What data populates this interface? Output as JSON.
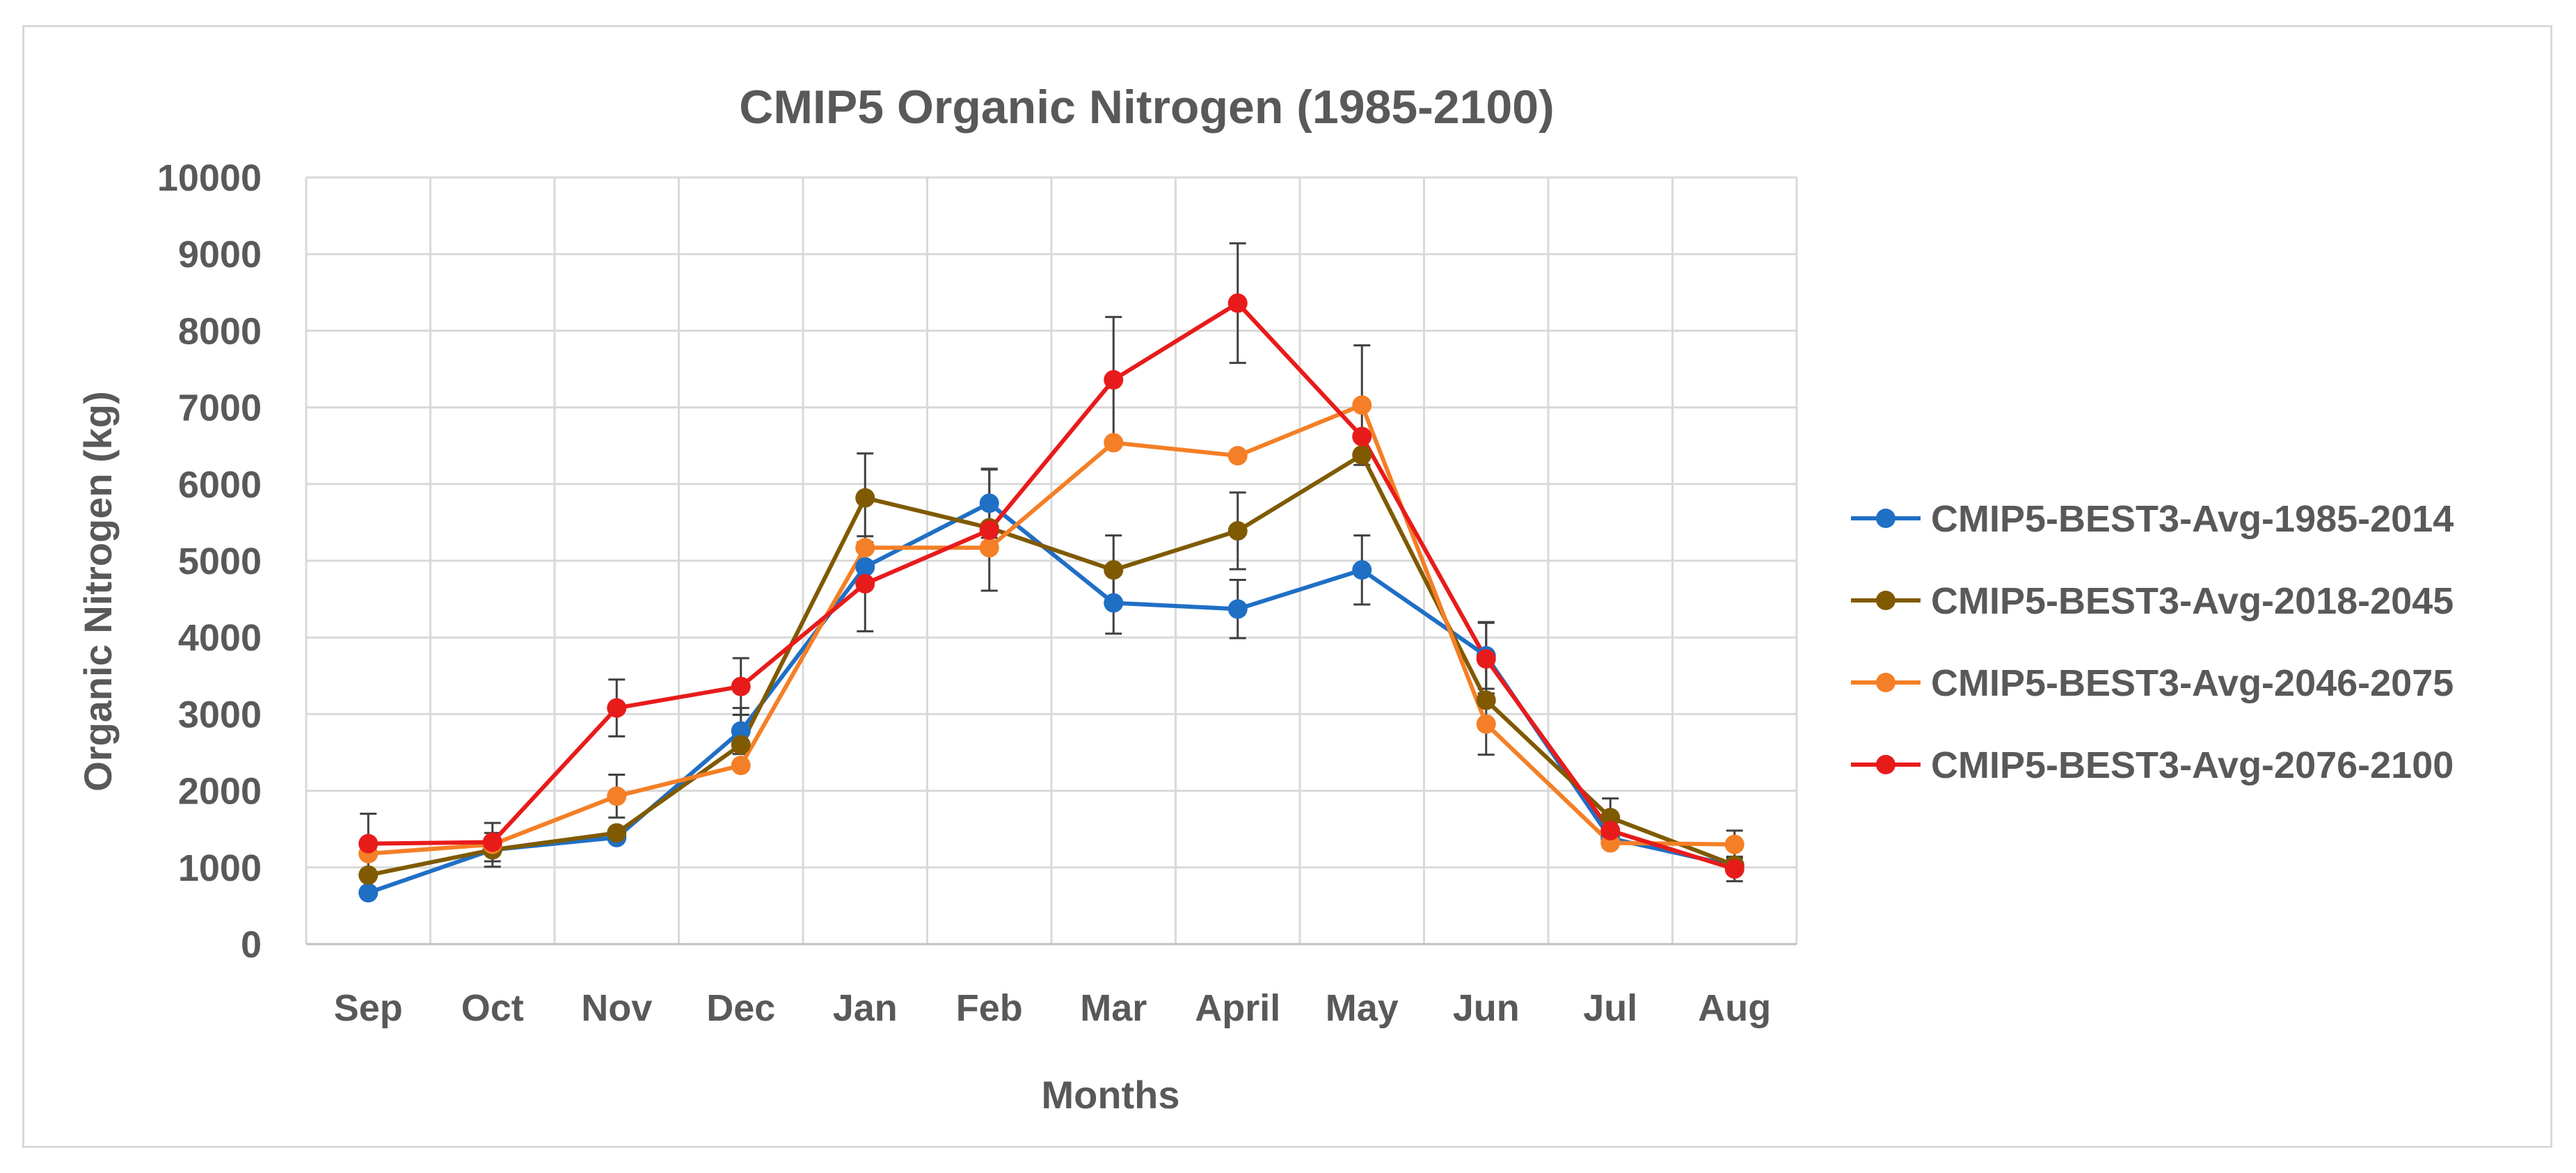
{
  "chart_data": {
    "type": "line",
    "title": "CMIP5 Organic Nitrogen (1985-2100)",
    "xlabel": "Months",
    "ylabel": "Organic Nitrogen (kg)",
    "categories": [
      "Sep",
      "Oct",
      "Nov",
      "Dec",
      "Jan",
      "Feb",
      "Mar",
      "April",
      "May",
      "Jun",
      "Jul",
      "Aug"
    ],
    "ylim": [
      0,
      10000
    ],
    "yticks": [
      0,
      1000,
      2000,
      3000,
      4000,
      5000,
      6000,
      7000,
      8000,
      9000,
      10000
    ],
    "grid": true,
    "legend_position": "right",
    "series": [
      {
        "name": "CMIP5-BEST3-Avg-1985-2014",
        "color": "#1f6fc5",
        "values": [
          670,
          1230,
          1390,
          2780,
          4920,
          5750,
          4450,
          4370,
          4880,
          3760,
          1380,
          1020
        ],
        "errors": [
          0,
          220,
          0,
          300,
          0,
          450,
          400,
          380,
          450,
          430,
          0,
          0
        ]
      },
      {
        "name": "CMIP5-BEST3-Avg-2018-2045",
        "color": "#7f5a00",
        "values": [
          900,
          1230,
          1450,
          2600,
          5820,
          5430,
          4880,
          5390,
          6380,
          3180,
          1650,
          1030
        ],
        "errors": [
          0,
          0,
          0,
          0,
          580,
          0,
          450,
          500,
          0,
          0,
          250,
          0
        ]
      },
      {
        "name": "CMIP5-BEST3-Avg-2046-2075",
        "color": "#f47f26",
        "values": [
          1180,
          1300,
          1930,
          2330,
          5170,
          5170,
          6540,
          6370,
          7030,
          2870,
          1320,
          1300
        ],
        "errors": [
          0,
          0,
          280,
          0,
          0,
          0,
          0,
          0,
          780,
          400,
          0,
          180
        ]
      },
      {
        "name": "CMIP5-BEST3-Avg-2076-2100",
        "color": "#e81b1b",
        "values": [
          1310,
          1330,
          3080,
          3360,
          4700,
          5400,
          7360,
          8360,
          6620,
          3720,
          1480,
          980
        ],
        "errors": [
          390,
          250,
          370,
          370,
          620,
          790,
          820,
          780,
          0,
          480,
          0,
          160
        ]
      }
    ]
  }
}
